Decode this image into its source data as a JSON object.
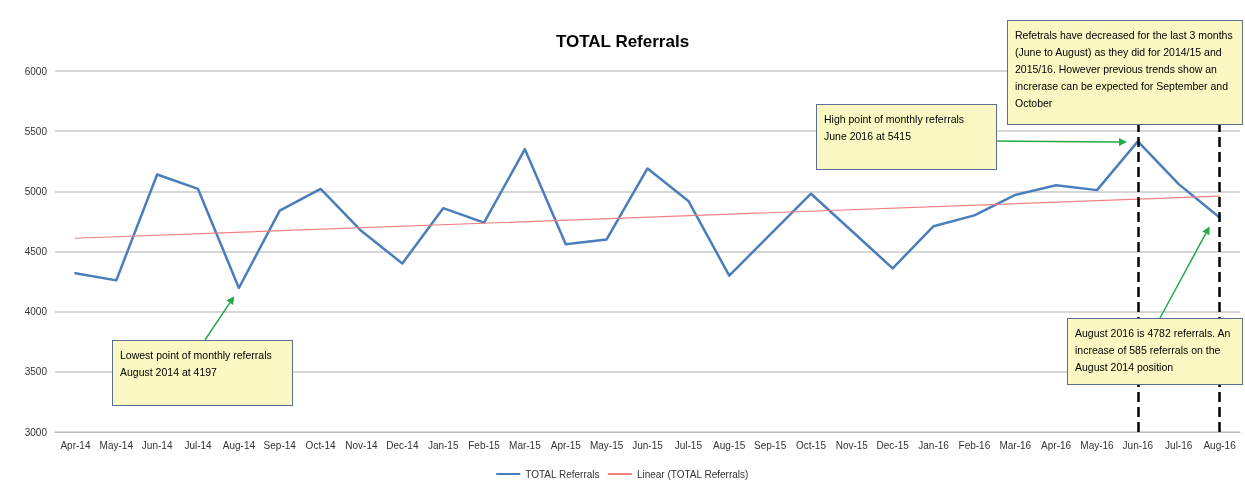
{
  "chart_data": {
    "type": "line",
    "title": "TOTAL Referrals",
    "categories": [
      "Apr-14",
      "May-14",
      "Jun-14",
      "Jul-14",
      "Aug-14",
      "Sep-14",
      "Oct-14",
      "Nov-14",
      "Dec-14",
      "Jan-15",
      "Feb-15",
      "Mar-15",
      "Apr-15",
      "May-15",
      "Jun-15",
      "Jul-15",
      "Aug-15",
      "Sep-15",
      "Oct-15",
      "Nov-15",
      "Dec-15",
      "Jan-16",
      "Feb-16",
      "Mar-16",
      "Apr-16",
      "May-16",
      "Jun-16",
      "Jul-16",
      "Aug-16"
    ],
    "series": [
      {
        "name": "TOTAL Referrals",
        "color": "#4a7ebb",
        "values": [
          4320,
          4260,
          5140,
          5020,
          4197,
          4840,
          5020,
          4670,
          4400,
          4860,
          4740,
          5350,
          4560,
          4600,
          5190,
          4920,
          4300,
          4640,
          4980,
          4670,
          4360,
          4710,
          4800,
          4970,
          5050,
          5010,
          5415,
          5060,
          4782
        ]
      },
      {
        "name": "Linear (TOTAL Referrals)",
        "color": "#f08080",
        "x": [
          "Apr-14",
          "Aug-16"
        ],
        "values": [
          4610,
          4960
        ]
      }
    ],
    "ylim": [
      3000,
      6000
    ],
    "yticks": [
      3000,
      3500,
      4000,
      4500,
      5000,
      5500,
      6000
    ],
    "grid": "y",
    "legend": "bottom",
    "marker": "none",
    "ref_lines": [
      {
        "axis": "x",
        "value": "Jun-16",
        "color": "#000000",
        "line_style": "dashed"
      },
      {
        "axis": "x",
        "value": "Aug-16",
        "color": "#000000",
        "line_style": "dashed"
      }
    ],
    "annotations": [
      "Lowest point of monthly referrals August 2014 at 4197",
      "High point of monthly referrals June 2016 at 5415",
      "Refetrals have decreased for the last 3 months (June to August) as they did for 2014/15 and 2015/16. However previous trends show an increrase  can be expected for September and October",
      "August 2016 is 4782 referrals. An increase of 585 referrals on the August 2014 position"
    ]
  }
}
